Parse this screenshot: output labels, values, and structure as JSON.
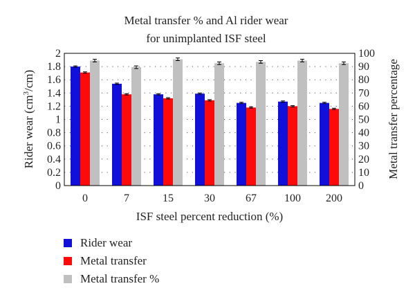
{
  "chart_data": {
    "type": "bar",
    "title_lines": [
      "Metal transfer % and Al rider wear",
      "for unimplanted ISF steel"
    ],
    "xlabel": "ISF steel percent reduction (%)",
    "ylabel_left": "Rider wear (cm",
    "ylabel_left_sup": "3",
    "ylabel_left_tail": "/cm)",
    "ylabel_right": "Metal transfer percentage",
    "categories": [
      "0",
      "7",
      "15",
      "30",
      "67",
      "100",
      "200"
    ],
    "ylim_left": [
      0,
      2
    ],
    "yticks_left": [
      "0",
      "0.2",
      "0.4",
      "0.6",
      "0.8",
      "1",
      "1.2",
      "1.4",
      "1.6",
      "1.8",
      "2"
    ],
    "ylim_right": [
      0,
      100
    ],
    "yticks_right": [
      "0",
      "10",
      "20",
      "30",
      "40",
      "50",
      "60",
      "70",
      "80",
      "90",
      "100"
    ],
    "grid": "dotted horizontal",
    "legend_position": "bottom-left",
    "series": [
      {
        "name": "Rider wear",
        "axis": "left",
        "color": "#1010d8",
        "values": [
          1.8,
          1.54,
          1.38,
          1.39,
          1.25,
          1.27,
          1.25
        ],
        "errors": [
          0.01,
          0.01,
          0.01,
          0.01,
          0.01,
          0.01,
          0.01
        ]
      },
      {
        "name": "Metal transfer",
        "axis": "left",
        "color": "#ff0a0a",
        "values": [
          1.71,
          1.38,
          1.32,
          1.29,
          1.18,
          1.2,
          1.16
        ],
        "errors": [
          0.01,
          0.01,
          0.01,
          0.01,
          0.01,
          0.01,
          0.01
        ]
      },
      {
        "name": "Metal transfer %",
        "axis": "right",
        "color": "#c0c0c0",
        "values": [
          94.5,
          89.5,
          95.5,
          92.5,
          93.5,
          94.5,
          92.5
        ],
        "errors": [
          1,
          1,
          1,
          1,
          1,
          1,
          1
        ]
      }
    ]
  }
}
